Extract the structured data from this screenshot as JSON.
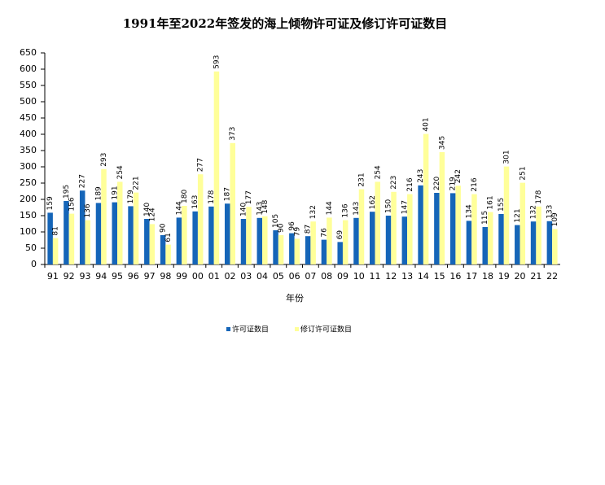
{
  "chart_data": {
    "type": "bar",
    "title": "1991年至2022年签发的海上倾物许可证及修订许可证数目",
    "x_label": "年份",
    "categories": [
      "91",
      "92",
      "93",
      "94",
      "95",
      "96",
      "97",
      "98",
      "99",
      "00",
      "01",
      "02",
      "03",
      "04",
      "05",
      "06",
      "07",
      "08",
      "09",
      "10",
      "11",
      "12",
      "13",
      "14",
      "15",
      "16",
      "17",
      "18",
      "19",
      "20",
      "21",
      "22"
    ],
    "series": [
      {
        "name": "许可证数目",
        "color": "#1565b8",
        "values": [
          159,
          195,
          227,
          189,
          191,
          179,
          140,
          90,
          144,
          163,
          178,
          187,
          140,
          143,
          105,
          96,
          87,
          76,
          69,
          143,
          162,
          150,
          147,
          243,
          220,
          219,
          134,
          115,
          155,
          121,
          132,
          133
        ]
      },
      {
        "name": "修订许可证数目",
        "color": "#ffff99",
        "values": [
          81,
          156,
          136,
          293,
          254,
          221,
          124,
          61,
          180,
          277,
          593,
          373,
          177,
          148,
          90,
          79,
          132,
          144,
          136,
          231,
          254,
          223,
          216,
          401,
          345,
          242,
          216,
          161,
          301,
          251,
          178,
          109
        ]
      }
    ],
    "ylim": [
      0,
      650
    ],
    "yticks": [
      0,
      50,
      100,
      150,
      200,
      250,
      300,
      350,
      400,
      450,
      500,
      550,
      600,
      650
    ],
    "grid": false
  }
}
